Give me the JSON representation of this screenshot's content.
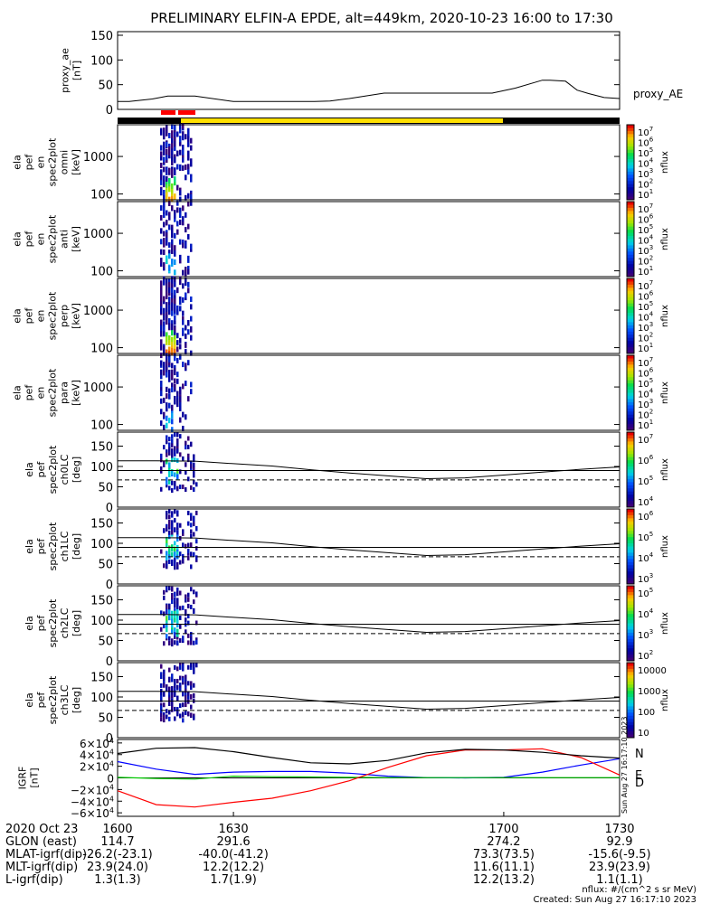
{
  "title": "PRELIMINARY ELFIN-A EPDE, alt=449km, 2020-10-23 16:00 to 17:30",
  "colors": {
    "n": "#0000ff",
    "e": "#00c800",
    "d": "#ff0000",
    "total": "#000000",
    "ae": "#000000",
    "red_bar": "#ff0000",
    "yellow_bar": "#ffe000",
    "black_bar": "#000000"
  },
  "chart_data": [
    {
      "name": "proxy_ae",
      "type": "line",
      "ylabel_lines": [
        "proxy_ae",
        "[nT]"
      ],
      "ylim": [
        0,
        150
      ],
      "yticks": [
        "150",
        "100",
        "50",
        "0"
      ],
      "legend": "proxy_AE",
      "x": [
        1600,
        1603,
        1609,
        1613,
        1616,
        1620,
        1630,
        1640,
        1645,
        1651,
        1655,
        1660,
        1669,
        1683,
        1690,
        1697,
        1703,
        1710,
        1712,
        1716,
        1719,
        1722,
        1726,
        1730
      ],
      "y": [
        16,
        16,
        21,
        27,
        27,
        27,
        16,
        16,
        16,
        16,
        17,
        22,
        33,
        33,
        33,
        33,
        43,
        59,
        59,
        57,
        39,
        32,
        24,
        22
      ]
    },
    {
      "name": "omni",
      "type": "heatmap",
      "ylabel_lines": [
        "ela",
        "pef",
        "en",
        "spec2plot",
        "omni",
        "[keV]"
      ],
      "ylim_log": [
        70,
        7000
      ],
      "yticks": [
        "1000",
        "100"
      ],
      "colorbar_ticks": [
        "10^7",
        "10^6",
        "10^5",
        "10^4",
        "10^3",
        "10^2",
        "10^1"
      ],
      "colorbar_label": "nflux"
    },
    {
      "name": "anti",
      "type": "heatmap",
      "ylabel_lines": [
        "ela",
        "pef",
        "en",
        "spec2plot",
        "anti",
        "[keV]"
      ],
      "ylim_log": [
        70,
        7000
      ],
      "yticks": [
        "1000",
        "100"
      ],
      "colorbar_ticks": [
        "10^7",
        "10^6",
        "10^5",
        "10^4",
        "10^3",
        "10^2",
        "10^1"
      ],
      "colorbar_label": "nflux"
    },
    {
      "name": "perp",
      "type": "heatmap",
      "ylabel_lines": [
        "ela",
        "pef",
        "en",
        "spec2plot",
        "perp",
        "[keV]"
      ],
      "ylim_log": [
        70,
        7000
      ],
      "yticks": [
        "1000",
        "100"
      ],
      "colorbar_ticks": [
        "10^7",
        "10^6",
        "10^5",
        "10^4",
        "10^3",
        "10^2",
        "10^1"
      ],
      "colorbar_label": "nflux"
    },
    {
      "name": "para",
      "type": "heatmap",
      "ylabel_lines": [
        "ela",
        "pef",
        "en",
        "spec2plot",
        "para",
        "[keV]"
      ],
      "ylim_log": [
        70,
        7000
      ],
      "yticks": [
        "1000",
        "100"
      ],
      "colorbar_ticks": [
        "10^7",
        "10^6",
        "10^5",
        "10^4",
        "10^3",
        "10^2",
        "10^1"
      ],
      "colorbar_label": "nflux"
    },
    {
      "name": "ch0LC",
      "type": "heatmap",
      "ylabel_lines": [
        "ela",
        "pef",
        "spec2plot",
        "ch0LC",
        "[deg]"
      ],
      "ylim": [
        0,
        180
      ],
      "yticks": [
        "150",
        "100",
        "50",
        "0"
      ],
      "colorbar_ticks": [
        "10^7",
        "10^6",
        "10^5",
        "10^4"
      ],
      "colorbar_label": "nflux",
      "lc_x": [
        1600,
        1610,
        1620,
        1630,
        1640,
        1650,
        1660,
        1670,
        1680,
        1690,
        1700,
        1710,
        1720,
        1730
      ],
      "lc_upper": [
        114,
        114,
        113,
        107,
        101,
        92,
        84,
        77,
        70,
        72,
        79,
        86,
        93,
        99
      ],
      "lc_lower": [
        67,
        67,
        67,
        67,
        67,
        67,
        67,
        67,
        67,
        67,
        67,
        67,
        67,
        67
      ],
      "lc_mid": [
        90,
        90,
        90,
        90,
        90,
        90,
        90,
        90,
        90,
        90,
        90,
        90,
        90,
        90
      ]
    },
    {
      "name": "ch1LC",
      "type": "heatmap",
      "ylabel_lines": [
        "ela",
        "pef",
        "spec2plot",
        "ch1LC",
        "[deg]"
      ],
      "ylim": [
        0,
        180
      ],
      "yticks": [
        "150",
        "100",
        "50",
        "0"
      ],
      "colorbar_ticks": [
        "10^6",
        "10^5",
        "10^4",
        "10^3"
      ],
      "colorbar_label": "nflux",
      "lc_x": [
        1600,
        1610,
        1620,
        1630,
        1640,
        1650,
        1660,
        1670,
        1680,
        1690,
        1700,
        1710,
        1720,
        1730
      ],
      "lc_upper": [
        114,
        114,
        113,
        107,
        101,
        92,
        84,
        77,
        70,
        72,
        79,
        86,
        93,
        99
      ],
      "lc_lower": [
        67,
        67,
        67,
        67,
        67,
        67,
        67,
        67,
        67,
        67,
        67,
        67,
        67,
        67
      ],
      "lc_mid": [
        90,
        90,
        90,
        90,
        90,
        90,
        90,
        90,
        90,
        90,
        90,
        90,
        90,
        90
      ]
    },
    {
      "name": "ch2LC",
      "type": "heatmap",
      "ylabel_lines": [
        "ela",
        "pef",
        "spec2plot",
        "ch2LC",
        "[deg]"
      ],
      "ylim": [
        0,
        180
      ],
      "yticks": [
        "150",
        "100",
        "50",
        "0"
      ],
      "colorbar_ticks": [
        "10^5",
        "10^4",
        "10^3",
        "10^2"
      ],
      "colorbar_label": "nflux",
      "lc_x": [
        1600,
        1610,
        1620,
        1630,
        1640,
        1650,
        1660,
        1670,
        1680,
        1690,
        1700,
        1710,
        1720,
        1730
      ],
      "lc_upper": [
        114,
        114,
        113,
        107,
        101,
        92,
        84,
        77,
        70,
        72,
        79,
        86,
        93,
        99
      ],
      "lc_lower": [
        67,
        67,
        67,
        67,
        67,
        67,
        67,
        67,
        67,
        67,
        67,
        67,
        67,
        67
      ],
      "lc_mid": [
        90,
        90,
        90,
        90,
        90,
        90,
        90,
        90,
        90,
        90,
        90,
        90,
        90,
        90
      ]
    },
    {
      "name": "ch3LC",
      "type": "heatmap",
      "ylabel_lines": [
        "ela",
        "pef",
        "spec2plot",
        "ch3LC",
        "[deg]"
      ],
      "ylim": [
        0,
        180
      ],
      "yticks": [
        "150",
        "100",
        "50",
        "0"
      ],
      "colorbar_ticks": [
        "10000",
        "1000",
        "100",
        "10"
      ],
      "colorbar_label": "nflux",
      "lc_x": [
        1600,
        1610,
        1620,
        1630,
        1640,
        1650,
        1660,
        1670,
        1680,
        1690,
        1700,
        1710,
        1720,
        1730
      ],
      "lc_upper": [
        114,
        114,
        113,
        107,
        101,
        92,
        84,
        77,
        70,
        72,
        79,
        86,
        93,
        99
      ],
      "lc_lower": [
        67,
        67,
        67,
        67,
        67,
        67,
        67,
        67,
        67,
        67,
        67,
        67,
        67,
        67
      ],
      "lc_mid": [
        90,
        90,
        90,
        90,
        90,
        90,
        90,
        90,
        90,
        90,
        90,
        90,
        90,
        90
      ]
    },
    {
      "name": "igrf",
      "type": "line",
      "ylabel_lines": [
        "IGRF",
        "[nT]"
      ],
      "ylim": [
        -66000,
        66000
      ],
      "yticks": [
        "6×10^4",
        "4×10^4",
        "2×10^4",
        "0",
        "−2×10^4",
        "−4×10^4",
        "−6×10^4"
      ],
      "legend": [
        "N",
        "E",
        "D"
      ],
      "x": [
        1600,
        1610,
        1620,
        1630,
        1640,
        1650,
        1660,
        1670,
        1680,
        1690,
        1700,
        1710,
        1720,
        1730
      ],
      "series": [
        {
          "name": "N",
          "values": [
            28000,
            15000,
            6000,
            10000,
            11000,
            11000,
            8000,
            3000,
            500,
            0,
            1000,
            10000,
            22000,
            33000
          ]
        },
        {
          "name": "E",
          "values": [
            1000,
            -1000,
            -2000,
            3000,
            2000,
            1500,
            1000,
            500,
            500,
            500,
            500,
            500,
            500,
            500
          ]
        },
        {
          "name": "D",
          "values": [
            -22000,
            -46000,
            -50000,
            -42000,
            -35000,
            -22000,
            -5000,
            18000,
            38000,
            48000,
            48000,
            50000,
            35000,
            5000
          ]
        },
        {
          "name": "",
          "values": [
            42000,
            51000,
            52000,
            45000,
            35000,
            26000,
            24000,
            30000,
            43000,
            49000,
            48000,
            44000,
            38000,
            34000
          ]
        }
      ]
    }
  ],
  "footer": {
    "rows": [
      {
        "label": "2020 Oct 23",
        "values": [
          "1600",
          "1630",
          "1700",
          "1730"
        ]
      },
      {
        "label": "GLON (east)",
        "values": [
          "114.7",
          "291.6",
          "274.2",
          "92.9"
        ]
      },
      {
        "label": "MLAT-igrf(dip)",
        "values": [
          "-26.2(-23.1)",
          "-40.0(-41.2)",
          "73.3(73.5)",
          "-15.6(-9.5)"
        ]
      },
      {
        "label": "MLT-igrf(dip)",
        "values": [
          "23.9(24.0)",
          "12.2(12.2)",
          "11.6(11.1)",
          "23.9(23.9)"
        ]
      },
      {
        "label": "L-igrf(dip)",
        "values": [
          "1.3(1.3)",
          "1.7(1.9)",
          "12.2(13.2)",
          "1.1(1.1)"
        ]
      }
    ],
    "units": "nflux: #/(cm^2 s sr MeV)",
    "created": "Created: Sun Aug 27 16:17:10 2023",
    "side_stamp": "Sun Aug 27 16:17:10 2023"
  }
}
